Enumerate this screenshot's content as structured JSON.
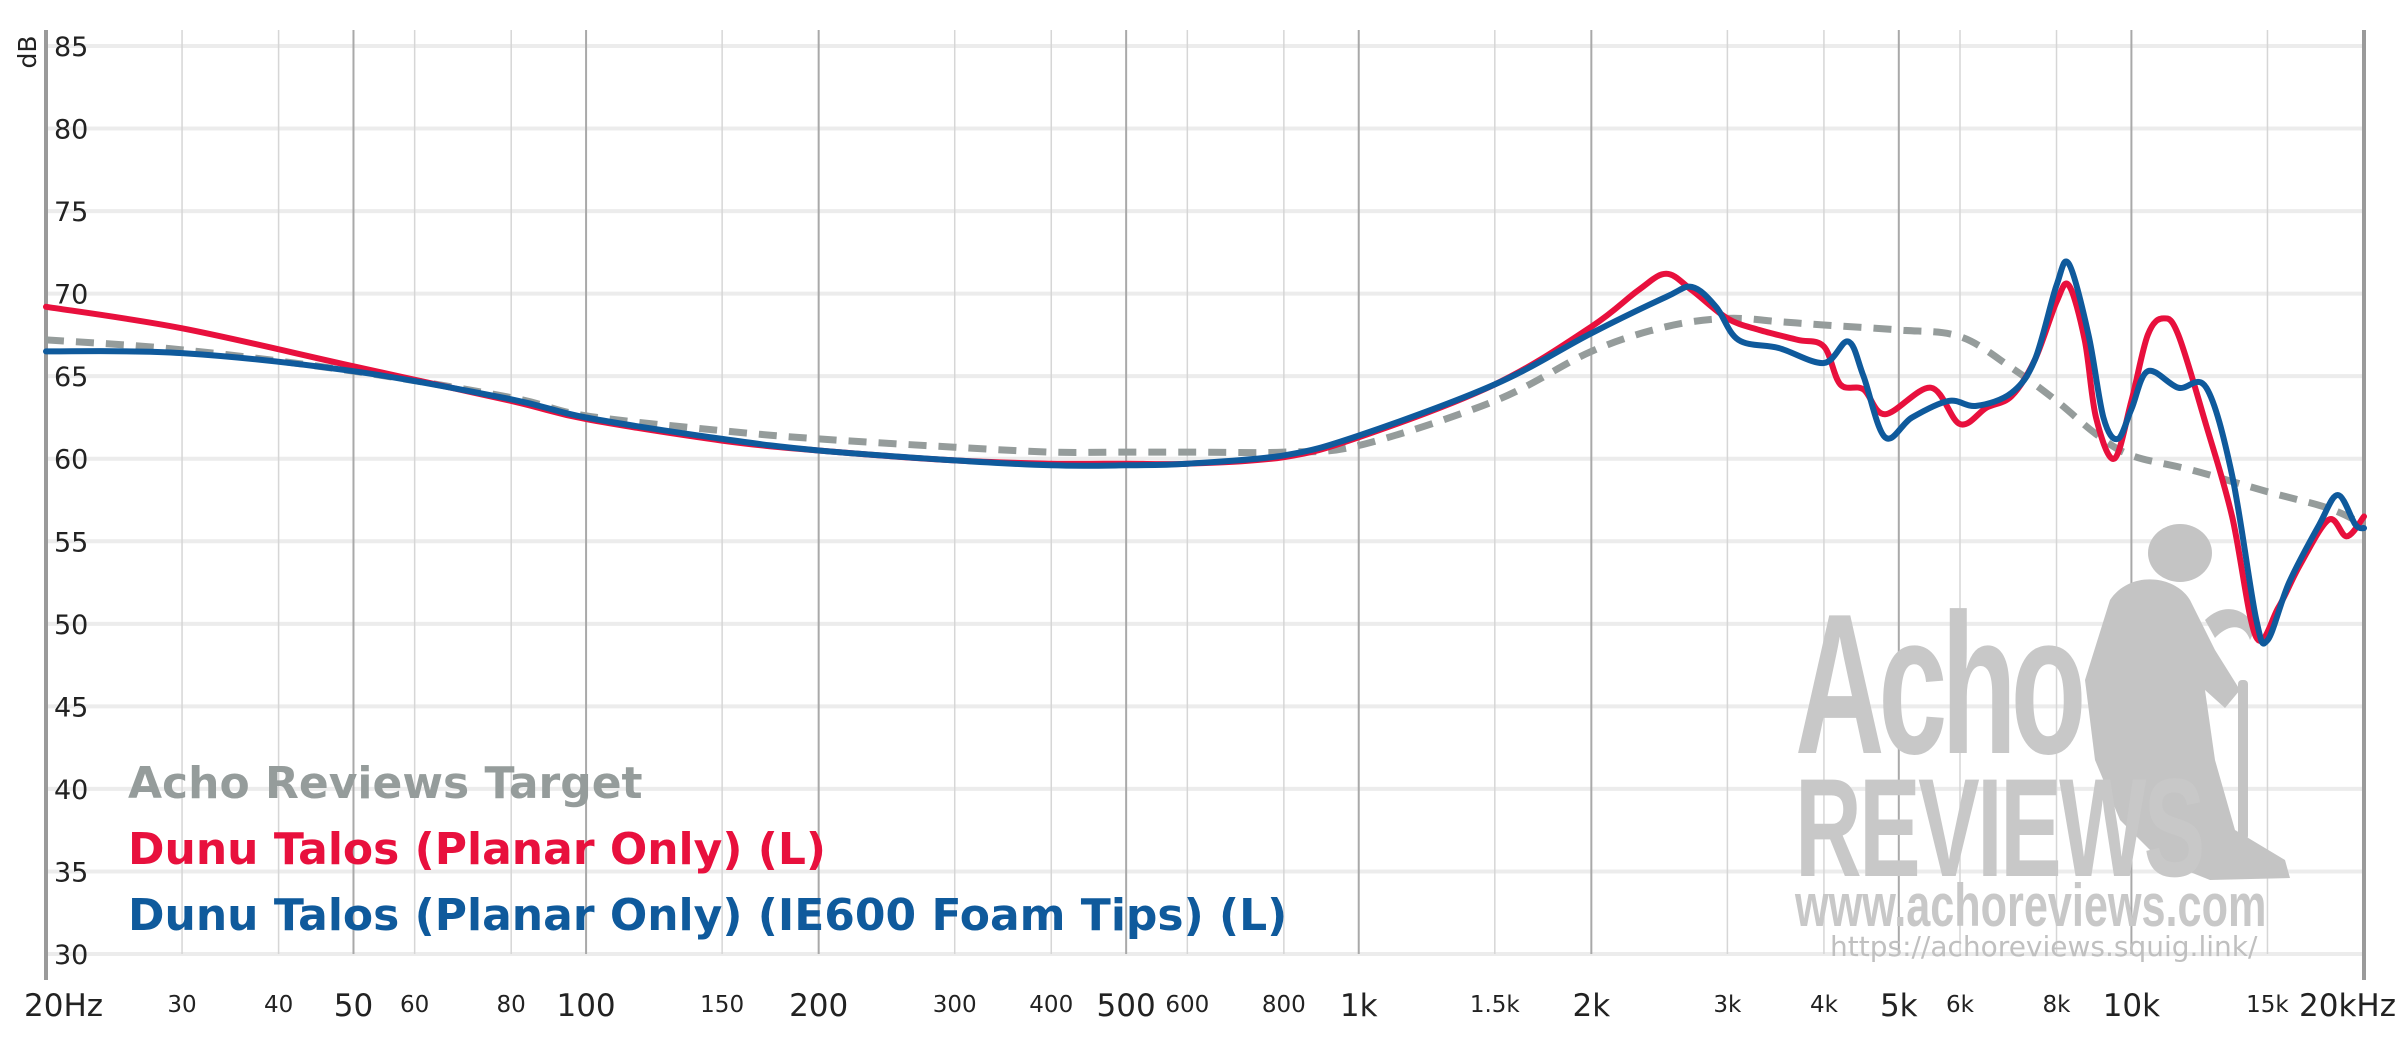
{
  "chart_data": {
    "type": "line",
    "ylabel": "dB",
    "ylim": [
      30,
      85
    ],
    "xlim": [
      20,
      20000
    ],
    "x_scale": "log",
    "grid": true,
    "legend_position": "bottom-left",
    "y_ticks": [
      85,
      80,
      75,
      70,
      65,
      60,
      55,
      50,
      45,
      40,
      35,
      30
    ],
    "x_ticks": [
      {
        "value": 20,
        "label": "20Hz",
        "major": true
      },
      {
        "value": 30,
        "label": "30",
        "major": false
      },
      {
        "value": 40,
        "label": "40",
        "major": false
      },
      {
        "value": 50,
        "label": "50",
        "major": true
      },
      {
        "value": 60,
        "label": "60",
        "major": false
      },
      {
        "value": 80,
        "label": "80",
        "major": false
      },
      {
        "value": 100,
        "label": "100",
        "major": true
      },
      {
        "value": 150,
        "label": "150",
        "major": false
      },
      {
        "value": 200,
        "label": "200",
        "major": true
      },
      {
        "value": 300,
        "label": "300",
        "major": false
      },
      {
        "value": 400,
        "label": "400",
        "major": false
      },
      {
        "value": 500,
        "label": "500",
        "major": true
      },
      {
        "value": 600,
        "label": "600",
        "major": false
      },
      {
        "value": 800,
        "label": "800",
        "major": false
      },
      {
        "value": 1000,
        "label": "1k",
        "major": true
      },
      {
        "value": 1500,
        "label": "1.5k",
        "major": false
      },
      {
        "value": 2000,
        "label": "2k",
        "major": true
      },
      {
        "value": 3000,
        "label": "3k",
        "major": false
      },
      {
        "value": 4000,
        "label": "4k",
        "major": false
      },
      {
        "value": 5000,
        "label": "5k",
        "major": true
      },
      {
        "value": 6000,
        "label": "6k",
        "major": false
      },
      {
        "value": 8000,
        "label": "8k",
        "major": false
      },
      {
        "value": 10000,
        "label": "10k",
        "major": true
      },
      {
        "value": 15000,
        "label": "15k",
        "major": false
      },
      {
        "value": 20000,
        "label": "20kHz",
        "major": true
      }
    ],
    "series": [
      {
        "name": "Acho Reviews Target",
        "color": "#959c9b",
        "dashed": true,
        "points": [
          [
            20,
            67.2
          ],
          [
            30,
            66.6
          ],
          [
            50,
            65.3
          ],
          [
            80,
            63.7
          ],
          [
            100,
            62.6
          ],
          [
            150,
            61.7
          ],
          [
            200,
            61.2
          ],
          [
            300,
            60.7
          ],
          [
            400,
            60.4
          ],
          [
            500,
            60.4
          ],
          [
            600,
            60.4
          ],
          [
            800,
            60.4
          ],
          [
            1000,
            60.8
          ],
          [
            1500,
            63.5
          ],
          [
            2000,
            66.5
          ],
          [
            2500,
            68.0
          ],
          [
            3000,
            68.5
          ],
          [
            3500,
            68.3
          ],
          [
            4000,
            68.1
          ],
          [
            5000,
            67.8
          ],
          [
            6000,
            67.4
          ],
          [
            7000,
            65.5
          ],
          [
            8000,
            63.5
          ],
          [
            9000,
            61.5
          ],
          [
            10000,
            60.2
          ],
          [
            12000,
            59.3
          ],
          [
            15000,
            58.0
          ],
          [
            18000,
            57.0
          ],
          [
            20000,
            56.0
          ]
        ]
      },
      {
        "name": "Dunu Talos (Planar Only) (L)",
        "color": "#e8103d",
        "dashed": false,
        "points": [
          [
            20,
            69.2
          ],
          [
            30,
            67.9
          ],
          [
            50,
            65.6
          ],
          [
            80,
            63.5
          ],
          [
            100,
            62.4
          ],
          [
            150,
            61.1
          ],
          [
            200,
            60.5
          ],
          [
            300,
            59.9
          ],
          [
            400,
            59.7
          ],
          [
            500,
            59.7
          ],
          [
            600,
            59.7
          ],
          [
            800,
            60.1
          ],
          [
            1000,
            61.3
          ],
          [
            1500,
            64.5
          ],
          [
            2000,
            68.0
          ],
          [
            2300,
            70.2
          ],
          [
            2500,
            71.2
          ],
          [
            2700,
            70.2
          ],
          [
            3000,
            68.5
          ],
          [
            3300,
            67.8
          ],
          [
            3700,
            67.2
          ],
          [
            4000,
            66.8
          ],
          [
            4200,
            64.5
          ],
          [
            4500,
            64.2
          ],
          [
            4800,
            62.7
          ],
          [
            5500,
            64.3
          ],
          [
            6000,
            62.1
          ],
          [
            6500,
            63.1
          ],
          [
            7000,
            63.8
          ],
          [
            7500,
            66.0
          ],
          [
            8000,
            69.5
          ],
          [
            8300,
            70.5
          ],
          [
            8700,
            67.2
          ],
          [
            9000,
            62.5
          ],
          [
            9500,
            60.0
          ],
          [
            10000,
            63.5
          ],
          [
            10500,
            67.5
          ],
          [
            11000,
            68.5
          ],
          [
            11500,
            67.5
          ],
          [
            12500,
            62.0
          ],
          [
            13500,
            56.5
          ],
          [
            14500,
            49.2
          ],
          [
            15500,
            51.0
          ],
          [
            16500,
            53.5
          ],
          [
            18000,
            56.3
          ],
          [
            19000,
            55.3
          ],
          [
            20000,
            56.5
          ]
        ]
      },
      {
        "name": "Dunu Talos (Planar Only) (IE600 Foam Tips) (L)",
        "color": "#0f5a9c",
        "dashed": false,
        "points": [
          [
            20,
            66.5
          ],
          [
            30,
            66.4
          ],
          [
            50,
            65.3
          ],
          [
            80,
            63.6
          ],
          [
            100,
            62.5
          ],
          [
            150,
            61.2
          ],
          [
            200,
            60.5
          ],
          [
            300,
            59.9
          ],
          [
            400,
            59.6
          ],
          [
            500,
            59.6
          ],
          [
            600,
            59.7
          ],
          [
            800,
            60.2
          ],
          [
            1000,
            61.4
          ],
          [
            1500,
            64.5
          ],
          [
            2000,
            67.6
          ],
          [
            2500,
            69.8
          ],
          [
            2700,
            70.4
          ],
          [
            2900,
            69.2
          ],
          [
            3100,
            67.2
          ],
          [
            3500,
            66.7
          ],
          [
            4000,
            65.8
          ],
          [
            4300,
            67.1
          ],
          [
            4500,
            65.0
          ],
          [
            4800,
            61.3
          ],
          [
            5200,
            62.5
          ],
          [
            5800,
            63.5
          ],
          [
            6300,
            63.2
          ],
          [
            7000,
            64.0
          ],
          [
            7500,
            66.0
          ],
          [
            8000,
            70.5
          ],
          [
            8300,
            71.8
          ],
          [
            8800,
            67.5
          ],
          [
            9200,
            62.5
          ],
          [
            9600,
            61.2
          ],
          [
            10000,
            63.0
          ],
          [
            10500,
            65.3
          ],
          [
            11500,
            64.3
          ],
          [
            12500,
            64.3
          ],
          [
            13500,
            59.0
          ],
          [
            14500,
            50.3
          ],
          [
            15000,
            49.0
          ],
          [
            16000,
            52.5
          ],
          [
            17500,
            56.0
          ],
          [
            18500,
            57.8
          ],
          [
            19500,
            56.0
          ],
          [
            20000,
            55.8
          ]
        ]
      }
    ]
  },
  "watermark": {
    "brand_top": "Acho",
    "brand_bottom": "REVIEWS",
    "site": "www.achoreviews.com",
    "url": "https://achoreviews.squig.link/"
  }
}
